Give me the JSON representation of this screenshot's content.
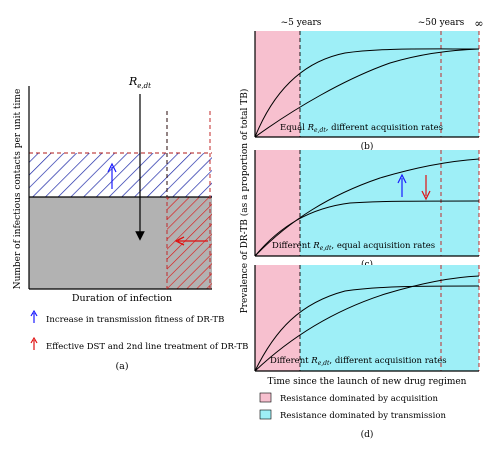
{
  "left_panel": {
    "r_label_main": "R",
    "r_label_sub": "e,dt",
    "ylabel": "Number of infectious contacts per unit time",
    "xlabel": "Duration of infection",
    "legend": [
      {
        "text": "Increase in transmission fitness of DR-TB",
        "color": "#1a1aff"
      },
      {
        "text": "Effective DST and 2nd line treatment of DR-TB",
        "color": "#e01010"
      }
    ],
    "caption": "(a)"
  },
  "right_panel": {
    "top_labels": [
      "~5 years",
      "~50 years",
      "∞"
    ],
    "ylabel": "Prevalence of DR-TB (as a proportion of total TB)",
    "xlabel": "Time since the launch of new drug regimen",
    "subplots": [
      {
        "label_prefix": "Equal ",
        "label_main": "R",
        "label_sub": "e,dt",
        "label_suffix": ", different acquisition rates",
        "caption": "(b)"
      },
      {
        "label_prefix": "Different ",
        "label_main": "R",
        "label_sub": "e,dt",
        "label_suffix": ", equal acquisition rates",
        "caption": "(c)"
      },
      {
        "label_prefix": "Different ",
        "label_main": "R",
        "label_sub": "e,dt",
        "label_suffix": ", different acquisition rates",
        "caption": ""
      }
    ],
    "legend": [
      {
        "text": "Resistance dominated by acquisition",
        "color": "#f7c0cf"
      },
      {
        "text": "Resistance dominated by transmission",
        "color": "#9eeff7"
      }
    ],
    "caption": "(d)"
  },
  "colors": {
    "pink": "#f7c0cf",
    "cyan": "#9eeff7",
    "gray": "#b2b2b2",
    "blue": "#1a1aff",
    "red": "#e01010",
    "dashed_red": "#c0282a"
  }
}
